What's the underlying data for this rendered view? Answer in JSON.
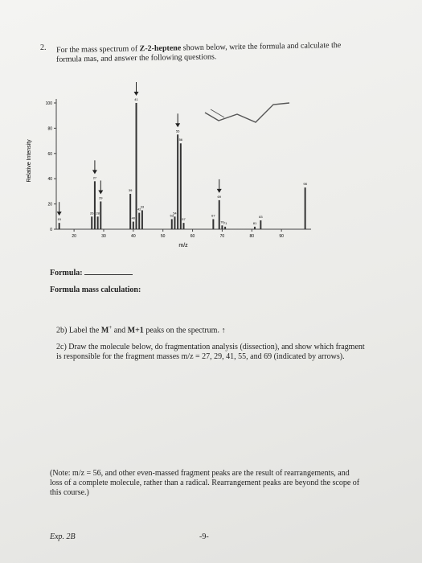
{
  "question": {
    "number": "2.",
    "text_1": "For the mass spectrum of ",
    "compound": "Z-2-heptene",
    "text_2": " shown below, write the formula and calculate the",
    "text_3": "formula mas, and answer the following questions."
  },
  "chart_data": {
    "type": "bar",
    "y_label": "Relative Intensity",
    "x_label": "m/z",
    "x": [
      15,
      26,
      27,
      28,
      29,
      39,
      40,
      41,
      42,
      43,
      53,
      54,
      55,
      56,
      57,
      67,
      69,
      70,
      71,
      81,
      83,
      98
    ],
    "values": [
      5,
      10,
      38,
      10,
      22,
      28,
      6,
      100,
      13,
      15,
      8,
      10,
      75,
      68,
      5,
      8,
      23,
      3,
      2,
      2,
      7,
      33
    ],
    "color": "#333333",
    "xlim": [
      14,
      100
    ],
    "xticks": [
      20,
      30,
      40,
      50,
      60,
      70,
      80,
      90
    ],
    "ylim": [
      0,
      100
    ],
    "yticks": [
      0,
      20,
      40,
      60,
      80,
      100
    ]
  },
  "formula": {
    "label": "Formula:",
    "mass_label": "Formula mass calculation:"
  },
  "part_b": {
    "text_1": "2b) Label the ",
    "m": "M",
    "sup": "+",
    "text_2": " and ",
    "m1": "M+1",
    "text_3": " peaks on the spectrum."
  },
  "part_c": {
    "line_1": "2c)  Draw the molecule below, do fragmentation analysis (dissection), and show which fragment",
    "line_2": "is responsible for the fragment masses m/z = 27, 29, 41, 55, and 69 (indicated by arrows)."
  },
  "note": {
    "line_1": "(Note: m/z = 56, and other even-massed fragment peaks are the result of rearrangements, and",
    "line_2": "loss of a complete molecule, rather than a radical. Rearrangement peaks are beyond the scope of",
    "line_3": "this course.)"
  },
  "footer": {
    "left": "Exp. 2B",
    "page": "-9-"
  }
}
